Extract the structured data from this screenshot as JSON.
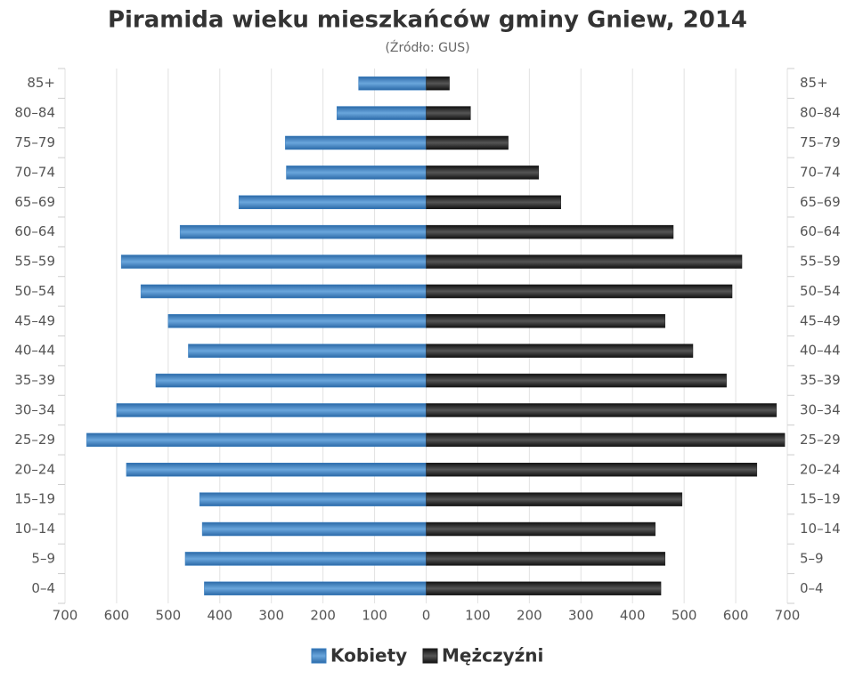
{
  "chart_data": {
    "type": "bar",
    "orientation": "horizontal",
    "title": "Piramida wieku mieszkańców gminy Gniew, 2014",
    "subtitle": "(Źródło: GUS)",
    "categories": [
      "0–4",
      "5–9",
      "10–14",
      "15–19",
      "20–24",
      "25–29",
      "30–34",
      "35–39",
      "40–44",
      "45–49",
      "50–54",
      "55–59",
      "60–64",
      "65–69",
      "70–74",
      "75–79",
      "80–84",
      "85+"
    ],
    "series": [
      {
        "name": "Kobiety",
        "color": "#3a7fc1",
        "values": [
          -430,
          -467,
          -434,
          -439,
          -581,
          -658,
          -600,
          -524,
          -461,
          -500,
          -553,
          -591,
          -477,
          -363,
          -271,
          -273,
          -173,
          -131
        ]
      },
      {
        "name": "Mężczyźni",
        "color": "#222222",
        "values": [
          455,
          463,
          444,
          496,
          641,
          695,
          679,
          582,
          517,
          463,
          593,
          612,
          479,
          261,
          218,
          159,
          86,
          45
        ]
      }
    ],
    "xlim": [
      -700,
      700
    ],
    "xticks": [
      {
        "value": -700,
        "label": "700"
      },
      {
        "value": -600,
        "label": "600"
      },
      {
        "value": -500,
        "label": "500"
      },
      {
        "value": -400,
        "label": "400"
      },
      {
        "value": -300,
        "label": "300"
      },
      {
        "value": -200,
        "label": "200"
      },
      {
        "value": -100,
        "label": "100"
      },
      0,
      100,
      200,
      300,
      400,
      500,
      600,
      700
    ],
    "grid": true,
    "legend": "bottom"
  }
}
